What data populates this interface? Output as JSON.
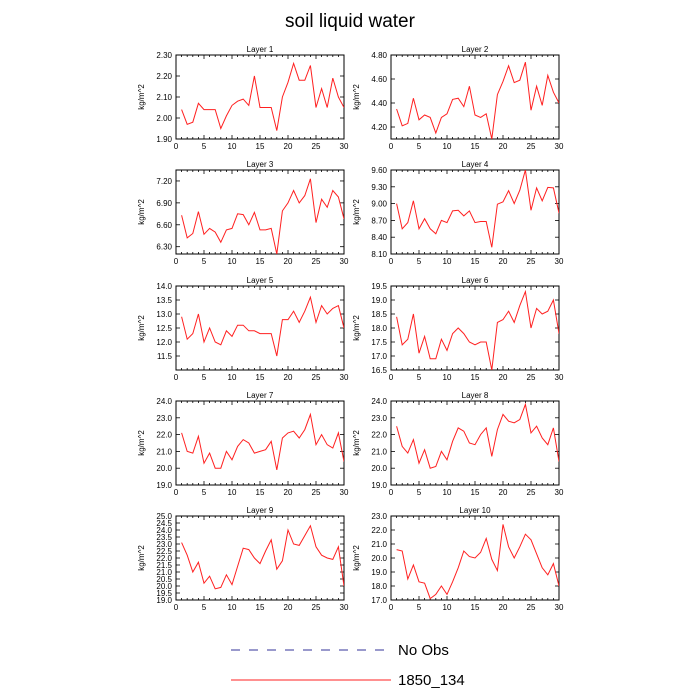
{
  "title": "soil liquid water",
  "chart_data": [
    {
      "type": "line",
      "title": "Layer 1",
      "ylabel": "kg/m^2",
      "xlim": [
        0,
        30
      ],
      "ylim": [
        1.9,
        2.3
      ],
      "xticks": [
        "0",
        "5",
        "10",
        "15",
        "20",
        "25",
        "30"
      ],
      "yticks": [
        "1.90",
        "2.00",
        "2.10",
        "2.20",
        "2.30"
      ],
      "x": [
        1,
        2,
        3,
        4,
        5,
        6,
        7,
        8,
        9,
        10,
        11,
        12,
        13,
        14,
        15,
        16,
        17,
        18,
        19,
        20,
        21,
        22,
        23,
        24,
        25,
        26,
        27,
        28,
        29,
        30
      ],
      "series": [
        {
          "name": "1850_134",
          "values": [
            2.04,
            1.97,
            1.98,
            2.07,
            2.04,
            2.04,
            2.04,
            1.95,
            2.01,
            2.06,
            2.08,
            2.09,
            2.06,
            2.2,
            2.05,
            2.05,
            2.05,
            1.94,
            2.1,
            2.17,
            2.26,
            2.18,
            2.18,
            2.25,
            2.05,
            2.14,
            2.05,
            2.19,
            2.1,
            2.05
          ]
        }
      ]
    },
    {
      "type": "line",
      "title": "Layer 2",
      "ylabel": "kg/m^2",
      "xlim": [
        0,
        30
      ],
      "ylim": [
        4.1,
        4.8
      ],
      "xticks": [
        "0",
        "5",
        "10",
        "15",
        "20",
        "25",
        "30"
      ],
      "yticks": [
        "4.20",
        "4.40",
        "4.60",
        "4.80"
      ],
      "x": [
        1,
        2,
        3,
        4,
        5,
        6,
        7,
        8,
        9,
        10,
        11,
        12,
        13,
        14,
        15,
        16,
        17,
        18,
        19,
        20,
        21,
        22,
        23,
        24,
        25,
        26,
        27,
        28,
        29,
        30
      ],
      "series": [
        {
          "name": "1850_134",
          "values": [
            4.35,
            4.21,
            4.23,
            4.44,
            4.26,
            4.3,
            4.28,
            4.15,
            4.28,
            4.31,
            4.43,
            4.44,
            4.37,
            4.54,
            4.3,
            4.28,
            4.31,
            4.1,
            4.47,
            4.58,
            4.71,
            4.57,
            4.59,
            4.74,
            4.34,
            4.54,
            4.38,
            4.63,
            4.49,
            4.4
          ]
        }
      ]
    },
    {
      "type": "line",
      "title": "Layer 3",
      "ylabel": "kg/m^2",
      "xlim": [
        0,
        30
      ],
      "ylim": [
        6.2,
        7.35
      ],
      "xticks": [
        "0",
        "5",
        "10",
        "15",
        "20",
        "25",
        "30"
      ],
      "yticks": [
        "6.30",
        "6.60",
        "6.90",
        "7.20"
      ],
      "x": [
        1,
        2,
        3,
        4,
        5,
        6,
        7,
        8,
        9,
        10,
        11,
        12,
        13,
        14,
        15,
        16,
        17,
        18,
        19,
        20,
        21,
        22,
        23,
        24,
        25,
        26,
        27,
        28,
        29,
        30
      ],
      "series": [
        {
          "name": "1850_134",
          "values": [
            6.73,
            6.42,
            6.48,
            6.78,
            6.47,
            6.55,
            6.5,
            6.36,
            6.53,
            6.55,
            6.75,
            6.74,
            6.6,
            6.77,
            6.53,
            6.53,
            6.55,
            6.2,
            6.79,
            6.9,
            7.07,
            6.9,
            7.0,
            7.23,
            6.63,
            6.95,
            6.84,
            7.07,
            6.98,
            6.68
          ]
        }
      ]
    },
    {
      "type": "line",
      "title": "Layer 4",
      "ylabel": "kg/m^2",
      "xlim": [
        0,
        30
      ],
      "ylim": [
        8.1,
        9.6
      ],
      "xticks": [
        "0",
        "5",
        "10",
        "15",
        "20",
        "25",
        "30"
      ],
      "yticks": [
        "8.10",
        "8.40",
        "8.70",
        "9.00",
        "9.30",
        "9.60"
      ],
      "x": [
        1,
        2,
        3,
        4,
        5,
        6,
        7,
        8,
        9,
        10,
        11,
        12,
        13,
        14,
        15,
        16,
        17,
        18,
        19,
        20,
        21,
        22,
        23,
        24,
        25,
        26,
        27,
        28,
        29,
        30
      ],
      "series": [
        {
          "name": "1850_134",
          "values": [
            9.0,
            8.55,
            8.66,
            9.05,
            8.55,
            8.73,
            8.55,
            8.46,
            8.7,
            8.66,
            8.87,
            8.88,
            8.78,
            8.87,
            8.66,
            8.68,
            8.68,
            8.22,
            8.99,
            9.03,
            9.23,
            9.0,
            9.24,
            9.6,
            8.88,
            9.28,
            9.05,
            9.29,
            9.28,
            8.83
          ]
        }
      ]
    },
    {
      "type": "line",
      "title": "Layer 5",
      "ylabel": "kg/m^2",
      "xlim": [
        0,
        30
      ],
      "ylim": [
        11.0,
        14.0
      ],
      "xticks": [
        "0",
        "5",
        "10",
        "15",
        "20",
        "25",
        "30"
      ],
      "yticks": [
        "11.5",
        "12.0",
        "12.5",
        "13.0",
        "13.5",
        "14.0"
      ],
      "x": [
        1,
        2,
        3,
        4,
        5,
        6,
        7,
        8,
        9,
        10,
        11,
        12,
        13,
        14,
        15,
        16,
        17,
        18,
        19,
        20,
        21,
        22,
        23,
        24,
        25,
        26,
        27,
        28,
        29,
        30
      ],
      "series": [
        {
          "name": "1850_134",
          "values": [
            12.9,
            12.1,
            12.3,
            13.0,
            12.0,
            12.5,
            12.0,
            11.9,
            12.4,
            12.2,
            12.6,
            12.6,
            12.4,
            12.4,
            12.3,
            12.3,
            12.3,
            11.5,
            12.8,
            12.8,
            13.1,
            12.7,
            13.1,
            13.6,
            12.7,
            13.3,
            13.0,
            13.2,
            13.3,
            12.5
          ]
        }
      ]
    },
    {
      "type": "line",
      "title": "Layer 6",
      "ylabel": "kg/m^2",
      "xlim": [
        0,
        30
      ],
      "ylim": [
        16.5,
        19.5
      ],
      "xticks": [
        "0",
        "5",
        "10",
        "15",
        "20",
        "25",
        "30"
      ],
      "yticks": [
        "16.5",
        "17.0",
        "17.5",
        "18.0",
        "18.5",
        "19.0",
        "19.5"
      ],
      "x": [
        1,
        2,
        3,
        4,
        5,
        6,
        7,
        8,
        9,
        10,
        11,
        12,
        13,
        14,
        15,
        16,
        17,
        18,
        19,
        20,
        21,
        22,
        23,
        24,
        25,
        26,
        27,
        28,
        29,
        30
      ],
      "series": [
        {
          "name": "1850_134",
          "values": [
            18.4,
            17.4,
            17.6,
            18.5,
            17.1,
            17.7,
            16.9,
            16.9,
            17.6,
            17.2,
            17.8,
            18.0,
            17.8,
            17.5,
            17.4,
            17.5,
            17.5,
            16.5,
            18.2,
            18.3,
            18.6,
            18.2,
            18.8,
            19.3,
            18.0,
            18.7,
            18.5,
            18.6,
            19.0,
            17.8
          ]
        }
      ]
    },
    {
      "type": "line",
      "title": "Layer 7",
      "ylabel": "kg/m^2",
      "xlim": [
        0,
        30
      ],
      "ylim": [
        19.0,
        24.0
      ],
      "xticks": [
        "0",
        "5",
        "10",
        "15",
        "20",
        "25",
        "30"
      ],
      "yticks": [
        "19.0",
        "20.0",
        "21.0",
        "22.0",
        "23.0",
        "24.0"
      ],
      "x": [
        1,
        2,
        3,
        4,
        5,
        6,
        7,
        8,
        9,
        10,
        11,
        12,
        13,
        14,
        15,
        16,
        17,
        18,
        19,
        20,
        21,
        22,
        23,
        24,
        25,
        26,
        27,
        28,
        29,
        30
      ],
      "series": [
        {
          "name": "1850_134",
          "values": [
            22.1,
            21.0,
            20.9,
            21.9,
            20.3,
            20.9,
            20.0,
            20.0,
            21.0,
            20.5,
            21.3,
            21.7,
            21.5,
            20.9,
            21.0,
            21.1,
            21.6,
            19.9,
            21.8,
            22.1,
            22.2,
            21.8,
            22.3,
            23.2,
            21.4,
            22.0,
            21.4,
            21.2,
            22.1,
            20.4
          ]
        }
      ]
    },
    {
      "type": "line",
      "title": "Layer 8",
      "ylabel": "kg/m^2",
      "xlim": [
        0,
        30
      ],
      "ylim": [
        19.0,
        24.0
      ],
      "xticks": [
        "0",
        "5",
        "10",
        "15",
        "20",
        "25",
        "30"
      ],
      "yticks": [
        "19.0",
        "20.0",
        "21.0",
        "22.0",
        "23.0",
        "24.0"
      ],
      "x": [
        1,
        2,
        3,
        4,
        5,
        6,
        7,
        8,
        9,
        10,
        11,
        12,
        13,
        14,
        15,
        16,
        17,
        18,
        19,
        20,
        21,
        22,
        23,
        24,
        25,
        26,
        27,
        28,
        29,
        30
      ],
      "series": [
        {
          "name": "1850_134",
          "values": [
            22.5,
            21.3,
            20.9,
            21.7,
            20.3,
            21.1,
            20.0,
            20.1,
            21.0,
            20.5,
            21.6,
            22.4,
            22.2,
            21.5,
            21.4,
            22.0,
            22.4,
            20.7,
            22.3,
            23.2,
            22.8,
            22.7,
            22.9,
            23.8,
            22.1,
            22.5,
            21.8,
            21.4,
            22.4,
            20.4
          ]
        }
      ]
    },
    {
      "type": "line",
      "title": "Layer 9",
      "ylabel": "kg/m^2",
      "xlim": [
        0,
        30
      ],
      "ylim": [
        19.0,
        25.0
      ],
      "xticks": [
        "0",
        "5",
        "10",
        "15",
        "20",
        "25",
        "30"
      ],
      "yticks": [
        "19.0",
        "19.5",
        "20.0",
        "20.5",
        "21.0",
        "21.5",
        "22.0",
        "22.5",
        "23.0",
        "23.5",
        "24.0",
        "24.5",
        "25.0"
      ],
      "x": [
        1,
        2,
        3,
        4,
        5,
        6,
        7,
        8,
        9,
        10,
        11,
        12,
        13,
        14,
        15,
        16,
        17,
        18,
        19,
        20,
        21,
        22,
        23,
        24,
        25,
        26,
        27,
        28,
        29,
        30
      ],
      "series": [
        {
          "name": "1850_134",
          "values": [
            23.1,
            22.2,
            21.0,
            21.7,
            20.2,
            20.7,
            19.8,
            19.9,
            20.8,
            20.1,
            21.4,
            22.7,
            22.6,
            22.0,
            21.6,
            22.5,
            23.3,
            21.2,
            21.8,
            24.0,
            23.0,
            22.9,
            23.6,
            24.3,
            22.8,
            22.2,
            22.0,
            21.9,
            22.8,
            20.0
          ]
        }
      ]
    },
    {
      "type": "line",
      "title": "Layer 10",
      "ylabel": "kg/m^2",
      "xlim": [
        0,
        30
      ],
      "ylim": [
        17.0,
        23.0
      ],
      "xticks": [
        "0",
        "5",
        "10",
        "15",
        "20",
        "25",
        "30"
      ],
      "yticks": [
        "17.0",
        "18.0",
        "19.0",
        "20.0",
        "21.0",
        "22.0",
        "23.0"
      ],
      "x": [
        1,
        2,
        3,
        4,
        5,
        6,
        7,
        8,
        9,
        10,
        11,
        12,
        13,
        14,
        15,
        16,
        17,
        18,
        19,
        20,
        21,
        22,
        23,
        24,
        25,
        26,
        27,
        28,
        29,
        30
      ],
      "series": [
        {
          "name": "1850_134",
          "values": [
            20.6,
            20.5,
            18.5,
            19.5,
            18.3,
            18.2,
            17.1,
            17.4,
            18.0,
            17.4,
            18.3,
            19.3,
            20.5,
            20.1,
            20.0,
            20.4,
            21.4,
            19.9,
            19.1,
            22.4,
            20.8,
            20.0,
            20.8,
            21.7,
            21.3,
            20.3,
            19.3,
            18.8,
            19.6,
            18.0
          ]
        }
      ]
    }
  ],
  "legend": {
    "items": [
      {
        "label": "No Obs",
        "style": "dashed",
        "color": "#333399"
      },
      {
        "label": "1850_134",
        "style": "solid",
        "color": "#ff2020"
      }
    ]
  },
  "colors": {
    "series": "#ff2020",
    "frame": "#000000"
  }
}
